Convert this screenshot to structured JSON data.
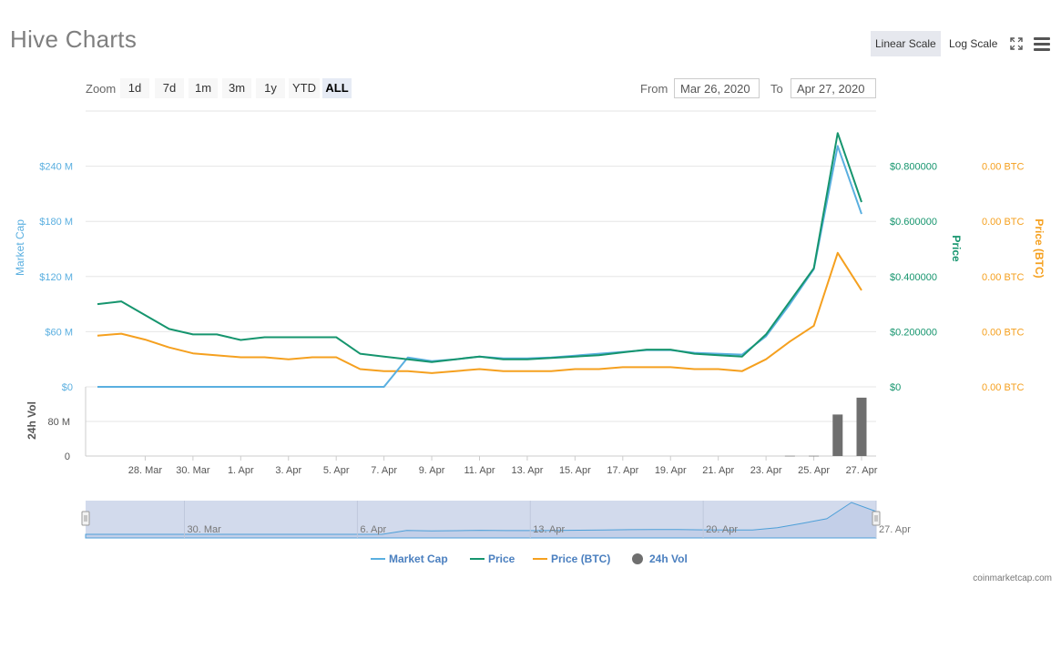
{
  "header": {
    "title": "Hive Charts",
    "linear_scale": "Linear Scale",
    "log_scale": "Log Scale",
    "fullscreen_icon": "fullscreen-icon",
    "menu_icon": "hamburger-menu-icon"
  },
  "zoom": {
    "label": "Zoom",
    "buttons": [
      "1d",
      "7d",
      "1m",
      "3m",
      "1y",
      "YTD",
      "ALL"
    ],
    "selected": "ALL"
  },
  "range": {
    "from_label": "From",
    "from_value": "Mar 26, 2020",
    "to_label": "To",
    "to_value": "Apr 27, 2020"
  },
  "credit": "coinmarketcap.com",
  "colors": {
    "market_cap": "#5aafe0",
    "price": "#16956e",
    "price_btc": "#f5a01f",
    "volume": "#6f6f6f",
    "navigator_fill": "#cdd6ea",
    "navigator_line": "#4d9fd8"
  },
  "chart_data": {
    "type": "line",
    "x": [
      "Mar 26",
      "Mar 27",
      "Mar 28",
      "Mar 29",
      "Mar 30",
      "Mar 31",
      "Apr 1",
      "Apr 2",
      "Apr 3",
      "Apr 4",
      "Apr 5",
      "Apr 6",
      "Apr 7",
      "Apr 8",
      "Apr 9",
      "Apr 10",
      "Apr 11",
      "Apr 12",
      "Apr 13",
      "Apr 14",
      "Apr 15",
      "Apr 16",
      "Apr 17",
      "Apr 18",
      "Apr 19",
      "Apr 20",
      "Apr 21",
      "Apr 22",
      "Apr 23",
      "Apr 24",
      "Apr 25",
      "Apr 26",
      "Apr 27"
    ],
    "x_tick_labels": [
      "28. Mar",
      "30. Mar",
      "1. Apr",
      "3. Apr",
      "5. Apr",
      "7. Apr",
      "9. Apr",
      "11. Apr",
      "13. Apr",
      "15. Apr",
      "17. Apr",
      "19. Apr",
      "21. Apr",
      "23. Apr",
      "25. Apr",
      "27. Apr"
    ],
    "y_axes": {
      "market_cap": {
        "title": "Market Cap",
        "ticks": [
          "$0",
          "$60 M",
          "$120 M",
          "$180 M",
          "$240 M"
        ],
        "ylim": [
          0,
          300
        ]
      },
      "price": {
        "title": "Price",
        "ticks": [
          "$0",
          "$0.200000",
          "$0.400000",
          "$0.600000",
          "$0.800000"
        ],
        "ylim": [
          0,
          1.0
        ]
      },
      "price_btc": {
        "title": "Price (BTC)",
        "ticks": [
          "0.00 BTC",
          "0.00 BTC",
          "0.00 BTC",
          "0.00 BTC",
          "0.00 BTC"
        ],
        "ylim": [
          0,
          0.00014
        ]
      },
      "volume": {
        "title": "24h Vol",
        "ticks": [
          "0",
          "80 M"
        ],
        "ylim": [
          0,
          160
        ]
      }
    },
    "series": [
      {
        "name": "Market Cap",
        "axis": "market_cap",
        "values": [
          0,
          0,
          0,
          0,
          0,
          0,
          0,
          0,
          0,
          0,
          0,
          0,
          0,
          32,
          28,
          30,
          33,
          31,
          31,
          32,
          34,
          36,
          38,
          40,
          40,
          37,
          36,
          35,
          55,
          90,
          128,
          262,
          188
        ]
      },
      {
        "name": "Price",
        "axis": "price",
        "values": [
          0.3,
          0.31,
          0.26,
          0.21,
          0.19,
          0.19,
          0.17,
          0.18,
          0.18,
          0.18,
          0.18,
          0.12,
          0.11,
          0.1,
          0.09,
          0.1,
          0.11,
          0.1,
          0.1,
          0.105,
          0.11,
          0.115,
          0.125,
          0.135,
          0.135,
          0.12,
          0.115,
          0.11,
          0.19,
          0.31,
          0.43,
          0.92,
          0.67
        ]
      },
      {
        "name": "Price (BTC)",
        "axis": "price_btc",
        "values": [
          2.6e-05,
          2.7e-05,
          2.4e-05,
          2e-05,
          1.7e-05,
          1.6e-05,
          1.5e-05,
          1.5e-05,
          1.4e-05,
          1.5e-05,
          1.5e-05,
          9e-06,
          8e-06,
          8e-06,
          7e-06,
          8e-06,
          9e-06,
          8e-06,
          8e-06,
          8e-06,
          9e-06,
          9e-06,
          1e-05,
          1e-05,
          1e-05,
          9e-06,
          9e-06,
          8e-06,
          1.4e-05,
          2.3e-05,
          3.1e-05,
          6.8e-05,
          4.9e-05
        ]
      },
      {
        "name": "24h Vol",
        "axis": "volume",
        "type": "bar",
        "values": [
          0,
          0,
          0,
          0,
          0,
          0,
          0,
          0,
          0,
          0,
          0,
          0,
          0,
          0,
          0,
          0,
          0,
          0,
          0,
          0,
          0,
          0,
          0,
          0,
          0,
          0,
          0,
          0,
          0,
          0.5,
          0.5,
          96,
          135
        ]
      }
    ],
    "navigator": {
      "x_tick_labels": [
        "30. Mar",
        "6. Apr",
        "13. Apr",
        "20. Apr",
        "27. Apr"
      ]
    },
    "legend": {
      "placement": "bottom",
      "items": [
        "Market Cap",
        "Price",
        "Price (BTC)",
        "24h Vol"
      ]
    }
  }
}
